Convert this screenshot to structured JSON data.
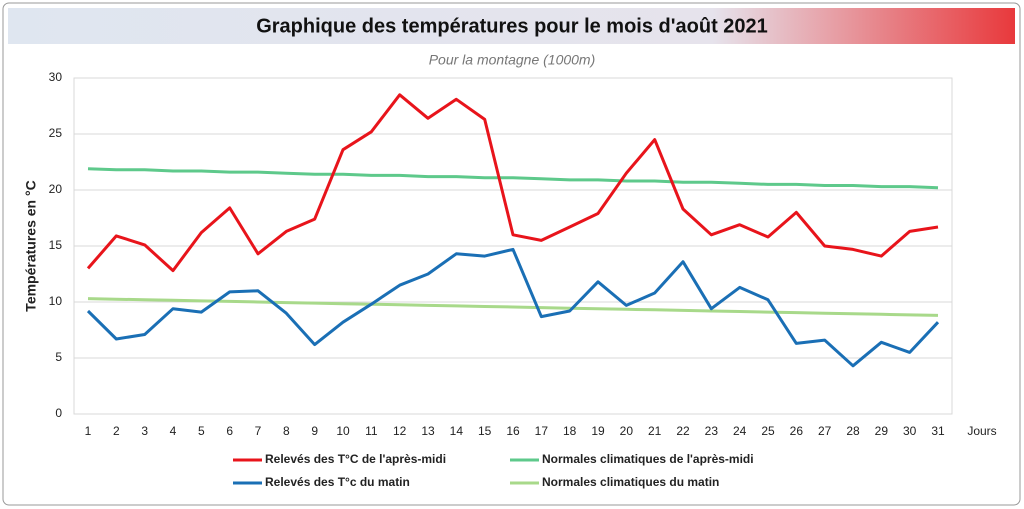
{
  "chart_data": {
    "type": "line",
    "title": "Graphique des températures pour le mois d'août 2021",
    "subtitle": "Pour la montagne (1000m)",
    "y_label": "Températures en °C",
    "x_label": "Jours",
    "categories": [
      1,
      2,
      3,
      4,
      5,
      6,
      7,
      8,
      9,
      10,
      11,
      12,
      13,
      14,
      15,
      16,
      17,
      18,
      19,
      20,
      21,
      22,
      23,
      24,
      25,
      26,
      27,
      28,
      29,
      30,
      31
    ],
    "ylim": [
      0,
      30
    ],
    "yticks": [
      0,
      5,
      10,
      15,
      20,
      25,
      30
    ],
    "grid": true,
    "series": [
      {
        "name": "Relevés des T°C de l'après-midi",
        "color": "#e8141b",
        "values": [
          13.0,
          15.9,
          15.1,
          12.8,
          16.2,
          18.4,
          14.3,
          16.3,
          17.4,
          23.6,
          25.2,
          28.5,
          26.4,
          28.1,
          26.3,
          16.0,
          15.5,
          16.7,
          17.9,
          21.5,
          24.5,
          18.3,
          16.0,
          16.9,
          15.8,
          18.0,
          15.0,
          14.7,
          14.1,
          16.3,
          16.7
        ]
      },
      {
        "name": "Normales climatiques de l'après-midi",
        "color": "#5ec98b",
        "values": [
          21.9,
          21.8,
          21.8,
          21.7,
          21.7,
          21.6,
          21.6,
          21.5,
          21.4,
          21.4,
          21.3,
          21.3,
          21.2,
          21.2,
          21.1,
          21.1,
          21.0,
          20.9,
          20.9,
          20.8,
          20.8,
          20.7,
          20.7,
          20.6,
          20.5,
          20.5,
          20.4,
          20.4,
          20.3,
          20.3,
          20.2
        ]
      },
      {
        "name": "Relevés des T°c du matin",
        "color": "#1a6fb5",
        "values": [
          9.2,
          6.7,
          7.1,
          9.4,
          9.1,
          10.9,
          11.0,
          9.0,
          6.2,
          8.2,
          9.8,
          11.5,
          12.5,
          14.3,
          14.1,
          14.7,
          8.7,
          9.2,
          11.8,
          9.7,
          10.8,
          13.6,
          9.4,
          11.3,
          10.2,
          6.3,
          6.6,
          4.3,
          6.4,
          5.5,
          8.2
        ]
      },
      {
        "name": "Normales climatiques du matin",
        "color": "#a8d98a",
        "values": [
          10.3,
          10.25,
          10.2,
          10.15,
          10.1,
          10.05,
          10.0,
          9.95,
          9.9,
          9.85,
          9.8,
          9.75,
          9.7,
          9.65,
          9.6,
          9.55,
          9.5,
          9.45,
          9.4,
          9.35,
          9.3,
          9.25,
          9.2,
          9.15,
          9.1,
          9.05,
          9.0,
          8.95,
          8.9,
          8.85,
          8.8
        ]
      }
    ]
  }
}
